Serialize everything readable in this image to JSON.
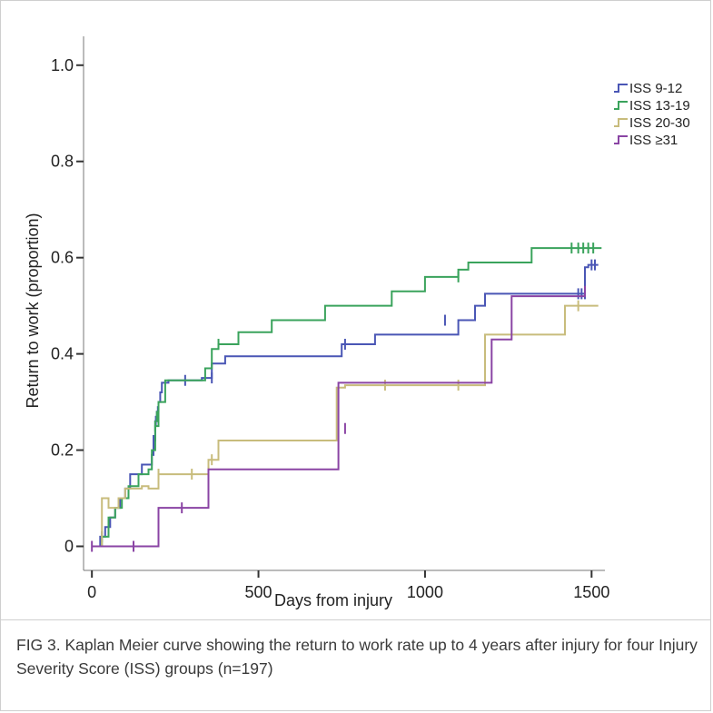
{
  "caption": "FIG 3.  Kaplan Meier curve showing the return to work rate up to 4 years after injury for four Injury Severity Score (ISS) groups (n=197)",
  "chart_data": {
    "type": "line",
    "step": true,
    "xlabel": "Days from injury",
    "ylabel": "Return to work (proportion)",
    "xlim": [
      -25,
      1540
    ],
    "ylim": [
      -0.05,
      1.06
    ],
    "x_ticks": [
      0,
      500,
      1000,
      1500
    ],
    "x_tick_labels": [
      "0",
      "500",
      "1000",
      "1500"
    ],
    "y_ticks": [
      0,
      0.2,
      0.4,
      0.6,
      0.8,
      1.0
    ],
    "y_tick_labels": [
      "0",
      "0.2",
      "0.4",
      "0.6",
      "0.8",
      "1.0"
    ],
    "grid": false,
    "legend_position": "top-right",
    "series": [
      {
        "name": "ISS 9-12",
        "color": "#4a56b5",
        "x": [
          0,
          25,
          40,
          55,
          70,
          85,
          100,
          115,
          150,
          180,
          185,
          190,
          195,
          200,
          205,
          210,
          230,
          330,
          360,
          400,
          750,
          850,
          1100,
          1150,
          1180,
          1480,
          1490,
          1520
        ],
        "y": [
          0,
          0.02,
          0.04,
          0.06,
          0.08,
          0.1,
          0.12,
          0.15,
          0.17,
          0.19,
          0.22,
          0.26,
          0.28,
          0.3,
          0.32,
          0.34,
          0.345,
          0.35,
          0.38,
          0.395,
          0.42,
          0.44,
          0.47,
          0.5,
          0.525,
          0.58,
          0.585,
          0.585
        ],
        "censored_x": [
          30,
          185,
          192,
          198,
          280,
          360,
          760,
          1060,
          1460,
          1470,
          1480,
          1500,
          1510
        ],
        "censored_y": [
          0.02,
          0.22,
          0.26,
          0.28,
          0.345,
          0.35,
          0.42,
          0.47,
          0.525,
          0.525,
          0.525,
          0.585,
          0.585
        ]
      },
      {
        "name": "ISS 13-19",
        "color": "#3aa35c",
        "x": [
          0,
          30,
          50,
          70,
          90,
          110,
          140,
          170,
          180,
          190,
          200,
          220,
          280,
          340,
          360,
          380,
          440,
          540,
          700,
          900,
          1000,
          1100,
          1130,
          1320,
          1530
        ],
        "y": [
          0,
          0.02,
          0.06,
          0.08,
          0.1,
          0.125,
          0.15,
          0.16,
          0.2,
          0.25,
          0.3,
          0.345,
          0.345,
          0.37,
          0.41,
          0.42,
          0.445,
          0.47,
          0.5,
          0.53,
          0.56,
          0.575,
          0.59,
          0.62,
          0.62
        ],
        "censored_x": [
          190,
          195,
          200,
          380,
          1100,
          1440,
          1460,
          1475,
          1490,
          1505
        ],
        "censored_y": [
          0.25,
          0.27,
          0.29,
          0.42,
          0.56,
          0.62,
          0.62,
          0.62,
          0.62,
          0.62
        ]
      },
      {
        "name": "ISS 20-30",
        "color": "#c8bc7c",
        "x": [
          0,
          30,
          50,
          80,
          100,
          150,
          170,
          200,
          250,
          330,
          350,
          380,
          720,
          735,
          760,
          1180,
          1420,
          1520
        ],
        "y": [
          0,
          0.1,
          0.08,
          0.1,
          0.12,
          0.125,
          0.12,
          0.15,
          0.15,
          0.15,
          0.18,
          0.22,
          0.22,
          0.33,
          0.335,
          0.44,
          0.5,
          0.5
        ],
        "censored_x": [
          200,
          300,
          360,
          880,
          1100,
          1460
        ],
        "censored_y": [
          0.15,
          0.15,
          0.18,
          0.335,
          0.335,
          0.5
        ]
      },
      {
        "name": "ISS ≥31",
        "color": "#8a44a4",
        "x": [
          0,
          200,
          270,
          350,
          720,
          740,
          1160,
          1200,
          1260,
          1470,
          1480
        ],
        "y": [
          0,
          0.08,
          0.08,
          0.16,
          0.16,
          0.34,
          0.34,
          0.43,
          0.52,
          0.52,
          0.53
        ],
        "censored_x": [
          0,
          125,
          270,
          760,
          1480
        ],
        "censored_y": [
          0,
          0,
          0.08,
          0.245,
          0.53
        ]
      }
    ]
  }
}
